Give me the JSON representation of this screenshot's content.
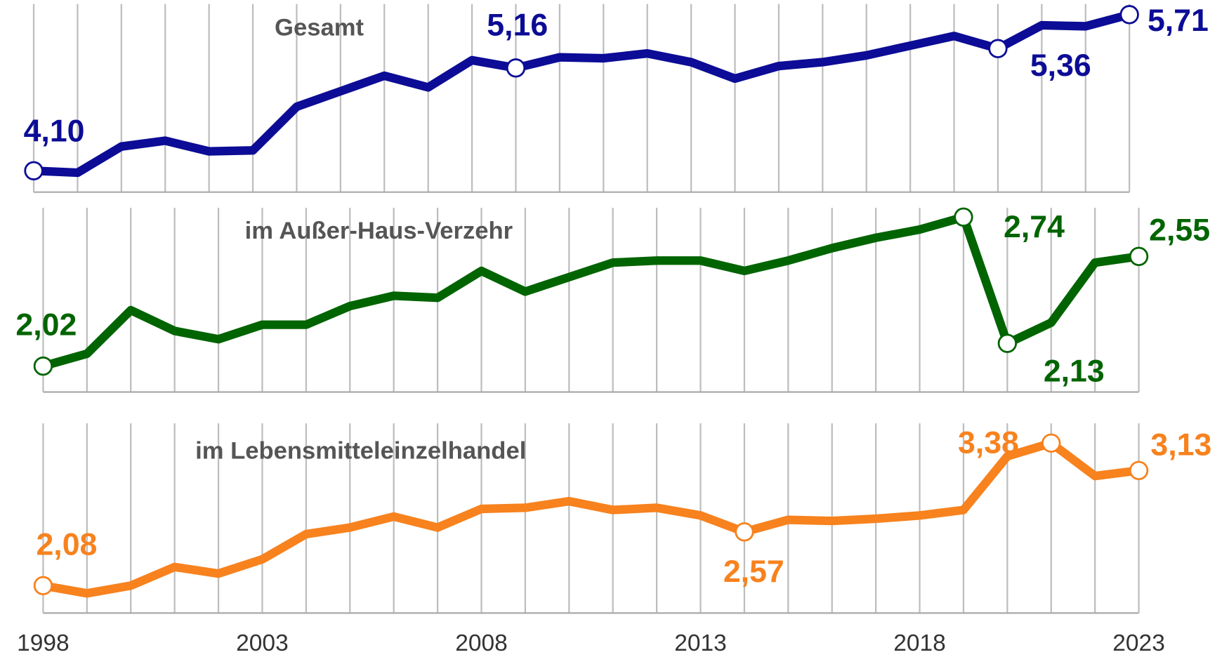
{
  "chart_data": [
    {
      "type": "line",
      "title": "Gesamt",
      "color": "#0c0c96",
      "x": [
        1998,
        1999,
        2000,
        2001,
        2002,
        2003,
        2004,
        2005,
        2006,
        2007,
        2008,
        2009,
        2010,
        2011,
        2012,
        2013,
        2014,
        2015,
        2016,
        2017,
        2018,
        2019,
        2020,
        2021,
        2022,
        2023
      ],
      "values": [
        4.1,
        4.08,
        4.35,
        4.41,
        4.3,
        4.31,
        4.76,
        4.92,
        5.08,
        4.96,
        5.24,
        5.16,
        5.27,
        5.26,
        5.31,
        5.22,
        5.05,
        5.18,
        5.22,
        5.29,
        5.39,
        5.49,
        5.36,
        5.6,
        5.59,
        5.71
      ],
      "value_labels": [
        "4,10",
        null,
        null,
        null,
        null,
        null,
        null,
        null,
        null,
        null,
        null,
        "5,16",
        null,
        null,
        null,
        null,
        null,
        null,
        null,
        null,
        null,
        null,
        "5,36",
        null,
        null,
        "5,71"
      ],
      "xlim": [
        1998,
        2023
      ],
      "ylim": [
        3.88,
        5.82
      ],
      "grid": true
    },
    {
      "type": "line",
      "title": "im Außer-Haus-Verzehr",
      "color": "#006400",
      "x": [
        1998,
        1999,
        2000,
        2001,
        2002,
        2003,
        2004,
        2005,
        2006,
        2007,
        2008,
        2009,
        2010,
        2011,
        2012,
        2013,
        2014,
        2015,
        2016,
        2017,
        2018,
        2019,
        2020,
        2021,
        2022,
        2023
      ],
      "values": [
        2.02,
        2.08,
        2.29,
        2.19,
        2.15,
        2.22,
        2.22,
        2.31,
        2.36,
        2.35,
        2.48,
        2.38,
        2.45,
        2.52,
        2.53,
        2.53,
        2.48,
        2.53,
        2.59,
        2.64,
        2.68,
        2.74,
        2.13,
        2.23,
        2.52,
        2.55
      ],
      "value_labels": [
        "2,02",
        null,
        null,
        null,
        null,
        null,
        null,
        null,
        null,
        null,
        null,
        null,
        null,
        null,
        null,
        null,
        null,
        null,
        null,
        null,
        null,
        "2,74",
        "2,13",
        null,
        null,
        "2,55"
      ],
      "xlim": [
        1998,
        2023
      ],
      "ylim": [
        1.895,
        2.785
      ],
      "grid": true
    },
    {
      "type": "line",
      "title": "im Lebensmitteleinzelhandel",
      "color": "#f7821e",
      "x": [
        1998,
        1999,
        2000,
        2001,
        2002,
        2003,
        2004,
        2005,
        2006,
        2007,
        2008,
        2009,
        2010,
        2011,
        2012,
        2013,
        2014,
        2015,
        2016,
        2017,
        2018,
        2019,
        2020,
        2021,
        2022,
        2023
      ],
      "values": [
        2.08,
        2.01,
        2.08,
        2.25,
        2.19,
        2.32,
        2.55,
        2.61,
        2.71,
        2.61,
        2.78,
        2.79,
        2.85,
        2.77,
        2.79,
        2.72,
        2.57,
        2.68,
        2.67,
        2.69,
        2.72,
        2.77,
        3.26,
        3.38,
        3.08,
        3.13
      ],
      "value_labels": [
        "2,08",
        null,
        null,
        null,
        null,
        null,
        null,
        null,
        null,
        null,
        null,
        null,
        null,
        null,
        null,
        null,
        "2,57",
        null,
        null,
        null,
        null,
        null,
        null,
        "3,38",
        null,
        "3,13"
      ],
      "xlim": [
        1998,
        2023
      ],
      "ylim": [
        1.83,
        3.56
      ],
      "grid": true,
      "xticks": [
        1998,
        2003,
        2008,
        2013,
        2018,
        2023
      ]
    }
  ]
}
